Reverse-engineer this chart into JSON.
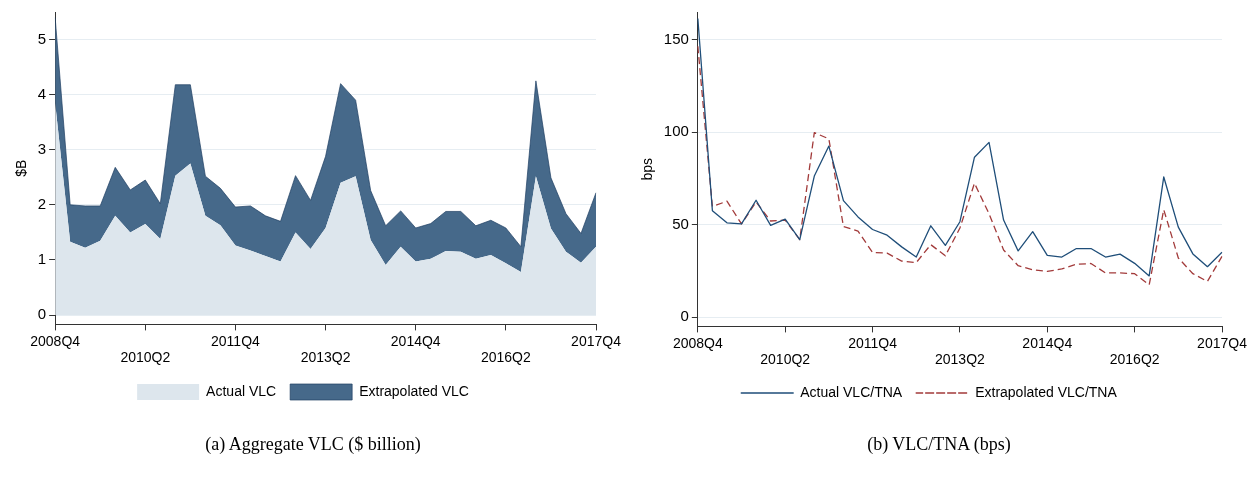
{
  "chart_data": [
    {
      "type": "area",
      "stacked": true,
      "ylabel": "$B",
      "ylim": [
        -0.17,
        5.5
      ],
      "yticks": [
        0,
        1,
        2,
        3,
        4,
        5
      ],
      "grid": "y",
      "legend": "bottom",
      "annotations": [
        "(a) Aggregate VLC ($ billion)"
      ],
      "categories": [
        "2008Q4",
        null,
        null,
        null,
        null,
        null,
        "2010Q2",
        null,
        null,
        null,
        null,
        null,
        "2011Q4",
        null,
        null,
        null,
        null,
        null,
        "2013Q2",
        null,
        null,
        null,
        null,
        null,
        "2014Q4",
        null,
        null,
        null,
        null,
        null,
        "2016Q2",
        null,
        null,
        null,
        null,
        null,
        "2017Q4"
      ],
      "series": [
        {
          "name": "Actual VLC",
          "color": "#dde6ed",
          "values": [
            3.85,
            1.33,
            1.22,
            1.35,
            1.8,
            1.5,
            1.65,
            1.38,
            2.53,
            2.75,
            1.8,
            1.63,
            1.26,
            1.17,
            1.07,
            0.97,
            1.5,
            1.2,
            1.58,
            2.4,
            2.52,
            1.36,
            0.91,
            1.24,
            0.97,
            1.02,
            1.16,
            1.15,
            1.02,
            1.09,
            0.94,
            0.78,
            2.52,
            1.57,
            1.15,
            0.95,
            1.24
          ]
        },
        {
          "name": "Extrapolated VLC",
          "color": "#46698a",
          "values": [
            1.55,
            0.67,
            0.76,
            0.63,
            0.88,
            0.77,
            0.8,
            0.64,
            1.65,
            1.43,
            0.72,
            0.67,
            0.7,
            0.81,
            0.73,
            0.73,
            1.03,
            0.88,
            1.3,
            1.8,
            1.38,
            0.9,
            0.71,
            0.65,
            0.61,
            0.64,
            0.72,
            0.73,
            0.6,
            0.63,
            0.64,
            0.46,
            1.73,
            0.92,
            0.69,
            0.53,
            0.98
          ]
        }
      ]
    },
    {
      "type": "line",
      "ylabel": "bps",
      "ylim": [
        -5,
        165
      ],
      "yticks": [
        0,
        50,
        100,
        150
      ],
      "grid": "y",
      "legend": "bottom",
      "marker": "none",
      "annotations": [
        "(b) VLC/TNA (bps)"
      ],
      "categories": [
        "2008Q4",
        null,
        null,
        null,
        null,
        null,
        "2010Q2",
        null,
        null,
        null,
        null,
        null,
        "2011Q4",
        null,
        null,
        null,
        null,
        null,
        "2013Q2",
        null,
        null,
        null,
        null,
        null,
        "2014Q4",
        null,
        null,
        null,
        null,
        null,
        "2016Q2",
        null,
        null,
        null,
        null,
        null,
        "2017Q4"
      ],
      "series": [
        {
          "name": "Actual VLC/TNA",
          "color": "#1f4e79",
          "line_style": "solid",
          "values": [
            161.5,
            57.6,
            51,
            50.4,
            63.2,
            49.6,
            53,
            41.9,
            76.3,
            92.5,
            63,
            54.2,
            47.4,
            44.3,
            38,
            32.5,
            49.4,
            38.8,
            51.6,
            86.5,
            94.5,
            52.5,
            35.8,
            46.2,
            33.4,
            32.5,
            37.1,
            37.1,
            32.5,
            34.1,
            29.1,
            22.3,
            75.8,
            48.7,
            34.2,
            27.3,
            35.1
          ]
        },
        {
          "name": "Extrapolated VLC/TNA",
          "color": "#a23a3a",
          "line_style": "dashed",
          "values": [
            146.5,
            59.8,
            62.7,
            50.4,
            62.3,
            52,
            52.5,
            41.9,
            99.8,
            96.4,
            49,
            46.5,
            35,
            34.6,
            30.3,
            29.5,
            39.2,
            33.2,
            48.2,
            72.4,
            55.9,
            36.3,
            27.8,
            25.6,
            24.7,
            26.1,
            28.6,
            29,
            23.9,
            23.9,
            23.5,
            17.5,
            58.1,
            32,
            23.5,
            19.3,
            32.9
          ]
        }
      ]
    }
  ]
}
